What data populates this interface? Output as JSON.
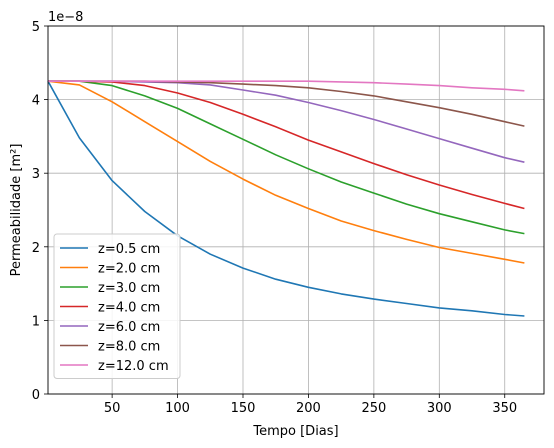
{
  "chart_data": {
    "type": "line",
    "xlabel": "Tempo [Dias]",
    "ylabel": "Permeabilidade [m²]",
    "offset_text": "1e−8",
    "xlim": [
      1,
      380
    ],
    "ylim": [
      0,
      5
    ],
    "xticks": [
      50,
      100,
      150,
      200,
      250,
      300,
      350
    ],
    "yticks": [
      0,
      1,
      2,
      3,
      4,
      5
    ],
    "grid": true,
    "legend_position": "lower-left",
    "x": [
      1,
      25,
      50,
      75,
      100,
      125,
      150,
      175,
      200,
      225,
      250,
      275,
      300,
      325,
      350,
      365
    ],
    "series": [
      {
        "name": "z=0.5 cm",
        "color": "#1f77b4",
        "values": [
          4.25,
          3.48,
          2.9,
          2.48,
          2.15,
          1.9,
          1.71,
          1.56,
          1.45,
          1.36,
          1.29,
          1.23,
          1.17,
          1.13,
          1.08,
          1.06
        ]
      },
      {
        "name": "z=2.0 cm",
        "color": "#ff7f0e",
        "values": [
          4.25,
          4.2,
          3.97,
          3.7,
          3.43,
          3.16,
          2.92,
          2.7,
          2.52,
          2.35,
          2.22,
          2.1,
          1.99,
          1.91,
          1.83,
          1.78
        ]
      },
      {
        "name": "z=3.0 cm",
        "color": "#2ca02c",
        "values": [
          4.25,
          4.25,
          4.19,
          4.05,
          3.88,
          3.67,
          3.46,
          3.25,
          3.06,
          2.88,
          2.73,
          2.58,
          2.45,
          2.34,
          2.23,
          2.18
        ]
      },
      {
        "name": "z=4.0 cm",
        "color": "#d62728",
        "values": [
          4.25,
          4.25,
          4.24,
          4.19,
          4.09,
          3.96,
          3.8,
          3.63,
          3.45,
          3.29,
          3.13,
          2.98,
          2.84,
          2.71,
          2.59,
          2.52
        ]
      },
      {
        "name": "z=6.0 cm",
        "color": "#9467bd",
        "values": [
          4.25,
          4.25,
          4.25,
          4.24,
          4.23,
          4.2,
          4.13,
          4.06,
          3.96,
          3.85,
          3.73,
          3.6,
          3.47,
          3.34,
          3.21,
          3.15
        ]
      },
      {
        "name": "z=8.0 cm",
        "color": "#8c564b",
        "values": [
          4.25,
          4.25,
          4.25,
          4.25,
          4.24,
          4.23,
          4.21,
          4.19,
          4.16,
          4.11,
          4.05,
          3.97,
          3.89,
          3.8,
          3.7,
          3.64
        ]
      },
      {
        "name": "z=12.0 cm",
        "color": "#e377c2",
        "values": [
          4.25,
          4.25,
          4.25,
          4.25,
          4.25,
          4.25,
          4.25,
          4.25,
          4.25,
          4.24,
          4.23,
          4.21,
          4.19,
          4.16,
          4.14,
          4.12
        ]
      }
    ]
  }
}
